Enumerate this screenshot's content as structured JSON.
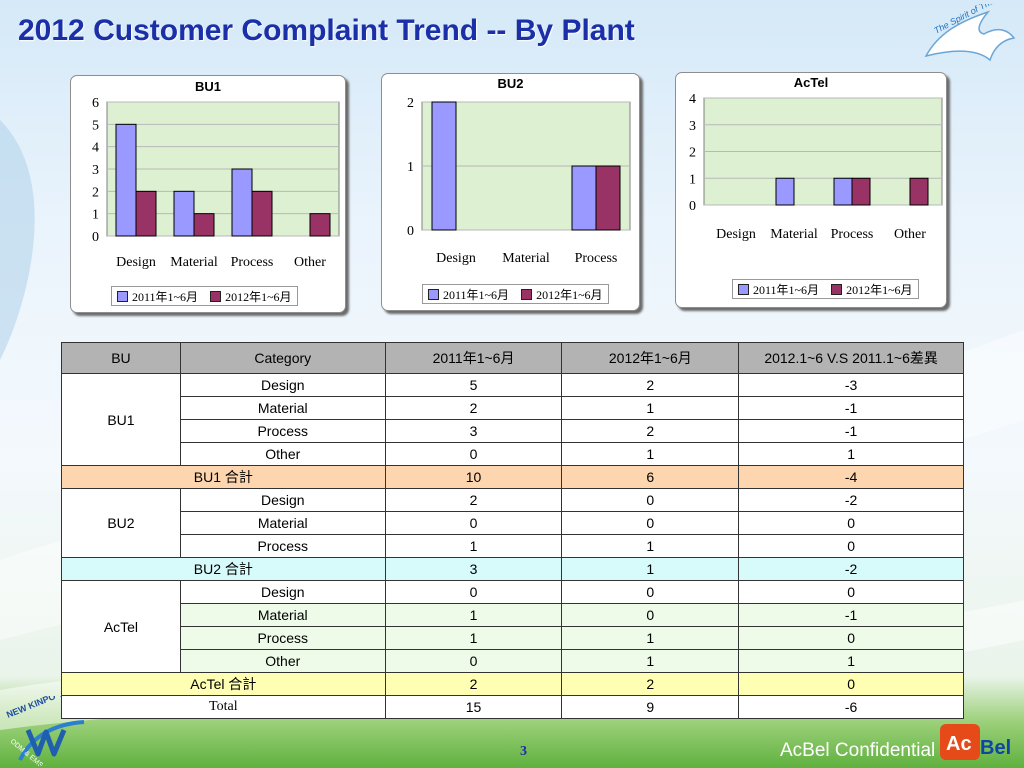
{
  "slide": {
    "title": "2012 Customer Complaint Trend -- By Plant",
    "page_number": "3",
    "confidential": "AcBel Confidential",
    "eagle_text": "The Spirit of The Eagle",
    "footer_logo_text": "NEW KINPO VALUE",
    "footer_logo_sub": "ODM & EMS Partner",
    "acbel_logo_a": "Ac",
    "acbel_logo_b": "Bel"
  },
  "colors": {
    "series_2011": "#9999ff",
    "series_2012": "#993366",
    "plot_bg": "#ddf0d2",
    "title": "#1a2fa8"
  },
  "chart_data": [
    {
      "type": "bar",
      "title": "BU1",
      "categories": [
        "Design",
        "Material",
        "Process",
        "Other"
      ],
      "series": [
        {
          "name": "2011年1~6月",
          "values": [
            5,
            2,
            3,
            0
          ]
        },
        {
          "name": "2012年1~6月",
          "values": [
            2,
            1,
            2,
            1
          ]
        }
      ],
      "ylim": [
        0,
        6
      ],
      "yticks": [
        0,
        1,
        2,
        3,
        4,
        5,
        6
      ],
      "grid": true,
      "legend": "bottom"
    },
    {
      "type": "bar",
      "title": "BU2",
      "categories": [
        "Design",
        "Material",
        "Process"
      ],
      "series": [
        {
          "name": "2011年1~6月",
          "values": [
            2,
            0,
            1
          ]
        },
        {
          "name": "2012年1~6月",
          "values": [
            0,
            0,
            1
          ]
        }
      ],
      "ylim": [
        0,
        2
      ],
      "yticks": [
        0,
        1,
        2
      ],
      "grid": true,
      "legend": "bottom"
    },
    {
      "type": "bar",
      "title": "AcTel",
      "categories": [
        "Design",
        "Material",
        "Process",
        "Other"
      ],
      "series": [
        {
          "name": "2011年1~6月",
          "values": [
            0,
            1,
            1,
            0
          ]
        },
        {
          "name": "2012年1~6月",
          "values": [
            0,
            0,
            1,
            1
          ]
        }
      ],
      "ylim": [
        0,
        4
      ],
      "yticks": [
        0,
        1,
        2,
        3,
        4
      ],
      "grid": true,
      "legend": "bottom"
    }
  ],
  "table": {
    "headers": [
      "BU",
      "Category",
      "2011年1~6月",
      "2012年1~6月",
      "2012.1~6 V.S 2011.1~6差異"
    ],
    "groups": [
      {
        "bu": "BU1",
        "rows": [
          [
            "Design",
            "5",
            "2",
            "-3"
          ],
          [
            "Material",
            "2",
            "1",
            "-1"
          ],
          [
            "Process",
            "3",
            "2",
            "-1"
          ],
          [
            "Other",
            "0",
            "1",
            "1"
          ]
        ],
        "subtotal": [
          "BU1 合計",
          "10",
          "6",
          "-4"
        ]
      },
      {
        "bu": "BU2",
        "rows": [
          [
            "Design",
            "2",
            "0",
            "-2"
          ],
          [
            "Material",
            "0",
            "0",
            "0"
          ],
          [
            "Process",
            "1",
            "1",
            "0"
          ]
        ],
        "subtotal": [
          "BU2 合計",
          "3",
          "1",
          "-2"
        ]
      },
      {
        "bu": "AcTel",
        "rows": [
          [
            "Design",
            "0",
            "0",
            "0"
          ],
          [
            "Material",
            "1",
            "0",
            "-1"
          ],
          [
            "Process",
            "1",
            "1",
            "0"
          ],
          [
            "Other",
            "0",
            "1",
            "1"
          ]
        ],
        "subtotal": [
          "AcTel 合計",
          "2",
          "2",
          "0"
        ]
      }
    ],
    "total": [
      "Total",
      "15",
      "9",
      "-6"
    ]
  }
}
